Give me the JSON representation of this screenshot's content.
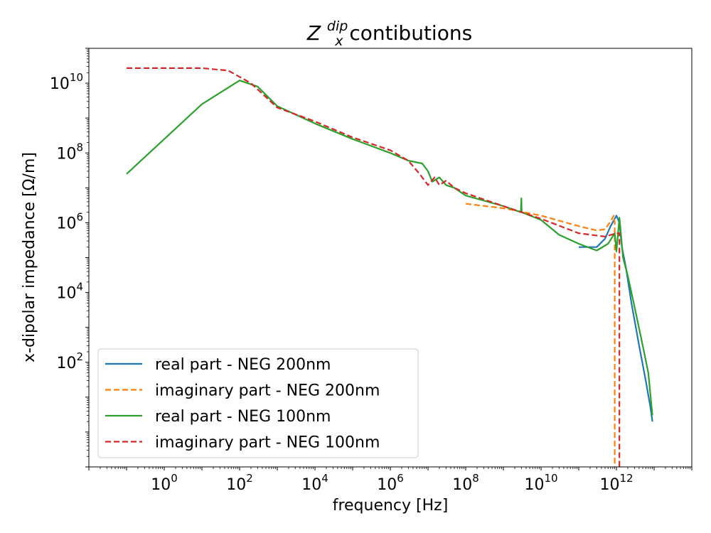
{
  "chart_data": {
    "type": "line",
    "title": {
      "base": "Z",
      "sup": "dip",
      "sub": "x",
      "rest": " contibutions"
    },
    "xlabel": "frequency [Hz]",
    "ylabel": "x-dipolar impedance [Ω/m]",
    "xscale": "log",
    "yscale": "log",
    "xlim": [
      0.01,
      100000000000000.0
    ],
    "ylim": [
      0.1,
      100000000000.0
    ],
    "xticks": [
      {
        "value": 1,
        "base": "10",
        "exp": "0"
      },
      {
        "value": 100,
        "base": "10",
        "exp": "2"
      },
      {
        "value": 10000,
        "base": "10",
        "exp": "4"
      },
      {
        "value": 1000000,
        "base": "10",
        "exp": "6"
      },
      {
        "value": 100000000,
        "base": "10",
        "exp": "8"
      },
      {
        "value": 10000000000,
        "base": "10",
        "exp": "10"
      },
      {
        "value": 1000000000000,
        "base": "10",
        "exp": "12"
      }
    ],
    "yticks": [
      {
        "value": 100,
        "base": "10",
        "exp": "2"
      },
      {
        "value": 10000,
        "base": "10",
        "exp": "4"
      },
      {
        "value": 1000000,
        "base": "10",
        "exp": "6"
      },
      {
        "value": 100000000,
        "base": "10",
        "exp": "8"
      },
      {
        "value": 10000000000,
        "base": "10",
        "exp": "10"
      }
    ],
    "grid": false,
    "legend_position": "lower-left",
    "series": [
      {
        "name": "real part - NEG 200nm",
        "color": "#1f77b4",
        "dash": "solid",
        "points": [
          [
            100000000000.0,
            200000.0
          ],
          [
            300000000000.0,
            200000.0
          ],
          [
            500000000000.0,
            350000.0
          ],
          [
            700000000000.0,
            800000.0
          ],
          [
            1000000000000.0,
            1600000.0
          ],
          [
            1200000000000.0,
            1000000.0
          ],
          [
            1400000000000.0,
            200000.0
          ],
          [
            1800000000000.0,
            50000.0
          ],
          [
            2500000000000.0,
            5000.0
          ],
          [
            4000000000000.0,
            300
          ],
          [
            6000000000000.0,
            30
          ],
          [
            8000000000000.0,
            5
          ],
          [
            9000000000000.0,
            2
          ]
        ]
      },
      {
        "name": "imaginary part - NEG 200nm",
        "color": "#ff7f0e",
        "dash": "dashed",
        "points": [
          [
            100000000.0,
            3500000.0
          ],
          [
            1000000000.0,
            2600000.0
          ],
          [
            10000000000.0,
            1600000.0
          ],
          [
            100000000000.0,
            800000.0
          ],
          [
            300000000000.0,
            600000.0
          ],
          [
            500000000000.0,
            650000.0
          ],
          [
            700000000000.0,
            1100000.0
          ],
          [
            850000000000.0,
            1600000.0
          ],
          [
            900000000000.0,
            1000000.0
          ],
          [
            900000000000.0,
            0.05
          ]
        ]
      },
      {
        "name": "real part - NEG 100nm",
        "color": "#2ca02c",
        "dash": "solid",
        "points": [
          [
            0.1,
            25000000.0
          ],
          [
            1,
            250000000.0
          ],
          [
            10,
            2500000000.0
          ],
          [
            100,
            12000000000.0
          ],
          [
            300,
            8000000000.0
          ],
          [
            1000,
            2200000000.0
          ],
          [
            10000,
            700000000.0
          ],
          [
            100000,
            250000000.0
          ],
          [
            1000000.0,
            100000000.0
          ],
          [
            3000000.0,
            60000000.0
          ],
          [
            7000000.0,
            50000000.0
          ],
          [
            10000000.0,
            30000000.0
          ],
          [
            13000000.0,
            15000000.0
          ],
          [
            20000000.0,
            20000000.0
          ],
          [
            30000000.0,
            12000000.0
          ],
          [
            50000000.0,
            10000000.0
          ],
          [
            100000000.0,
            6000000.0
          ],
          [
            1000000000.0,
            3000000.0
          ],
          [
            2900000000.0,
            2000000.0
          ],
          [
            3000000000.0,
            5000000.0
          ],
          [
            3050000000.0,
            2000000.0
          ],
          [
            10000000000.0,
            1200000.0
          ],
          [
            30000000000.0,
            450000.0
          ],
          [
            100000000000.0,
            250000.0
          ],
          [
            300000000000.0,
            160000.0
          ],
          [
            600000000000.0,
            250000.0
          ],
          [
            900000000000.0,
            500000.0
          ],
          [
            1000000000000.0,
            150000.0
          ],
          [
            1200000000000.0,
            1400000.0
          ],
          [
            1500000000000.0,
            100000.0
          ],
          [
            2000000000000.0,
            30000.0
          ],
          [
            3000000000000.0,
            4000.0
          ],
          [
            5000000000000.0,
            300
          ],
          [
            7000000000000.0,
            50
          ],
          [
            9000000000000.0,
            3
          ]
        ]
      },
      {
        "name": "imaginary part - NEG 100nm",
        "color": "#d62728",
        "dash": "dashed",
        "points": [
          [
            0.1,
            27000000000.0
          ],
          [
            10,
            27000000000.0
          ],
          [
            50,
            23000000000.0
          ],
          [
            200,
            10000000000.0
          ],
          [
            500,
            4000000000.0
          ],
          [
            1000,
            2000000000.0
          ],
          [
            10000,
            800000000.0
          ],
          [
            100000,
            280000000.0
          ],
          [
            1000000.0,
            120000000.0
          ],
          [
            3000000.0,
            60000000.0
          ],
          [
            6000000.0,
            25000000.0
          ],
          [
            10000000.0,
            12000000.0
          ],
          [
            15000000.0,
            20000000.0
          ],
          [
            20000000.0,
            12000000.0
          ],
          [
            30000000.0,
            16000000.0
          ],
          [
            50000000.0,
            10000000.0
          ],
          [
            100000000.0,
            7000000.0
          ],
          [
            1000000000.0,
            3000000.0
          ],
          [
            10000000000.0,
            1300000.0
          ],
          [
            100000000000.0,
            500000.0
          ],
          [
            500000000000.0,
            400000.0
          ],
          [
            1000000000000.0,
            500000.0
          ],
          [
            1200000000000.0,
            500000.0
          ],
          [
            1200000000000.0,
            0.05
          ]
        ]
      }
    ]
  }
}
